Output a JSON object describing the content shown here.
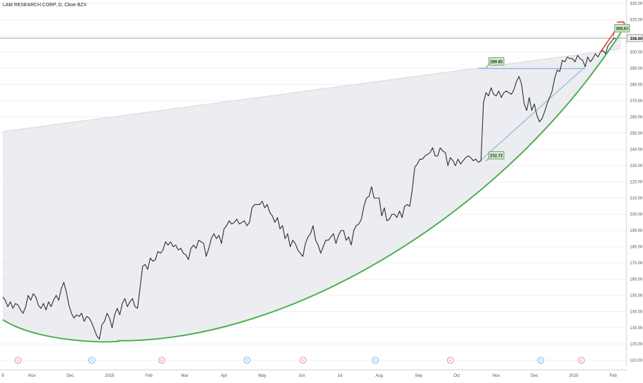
{
  "header": {
    "symbol_title": "LAM RESEARCH CORP, D, Cboe BZX"
  },
  "colors": {
    "price_line": "#2a2a2a",
    "cup_curve": "#4caf50",
    "fill_region": "#e9eaee",
    "blue_lines": "#8ab4e8",
    "red_arrow": "#e53935",
    "label_bg": "#cfe8c7",
    "label_border": "#5f8f5f",
    "grid": "#f0f0f3",
    "earnings_event": "#e57373",
    "dividend_event": "#42a5f5",
    "axis_text": "#555555",
    "last_price_bg": "#f5f5f5"
  },
  "chart_data": {
    "type": "line",
    "title": "LAM RESEARCH CORP, D, Cboe BZX",
    "y_axis": {
      "ticks": [
        "110.00",
        "120.00",
        "130.00",
        "140.00",
        "150.00",
        "160.00",
        "170.00",
        "180.00",
        "190.00",
        "200.00",
        "210.00",
        "220.00",
        "230.00",
        "240.00",
        "250.00",
        "260.00",
        "270.00",
        "280.00",
        "290.00",
        "300.00",
        "310.00",
        "320.00",
        "330.00"
      ],
      "ylim": [
        110,
        330
      ],
      "last_price_label": "308.60",
      "last_price": 308.6
    },
    "x_axis": {
      "tick_labels": [
        "8",
        "Nov",
        "Dec",
        "2019",
        "Feb",
        "Mar",
        "Apr",
        "May",
        "Jun",
        "Jul",
        "Aug",
        "Sep",
        "Oct",
        "Nov",
        "Dec",
        "2020",
        "Feb"
      ],
      "tick_days": [
        0,
        23,
        53,
        84,
        115,
        143,
        174,
        204,
        235,
        265,
        296,
        327,
        357,
        388,
        418,
        449,
        480
      ]
    },
    "price_series": {
      "name": "",
      "points": [
        [
          0,
          149
        ],
        [
          2,
          147
        ],
        [
          4,
          143
        ],
        [
          6,
          146
        ],
        [
          8,
          142
        ],
        [
          10,
          145
        ],
        [
          12,
          144
        ],
        [
          14,
          141
        ],
        [
          16,
          139
        ],
        [
          18,
          143
        ],
        [
          20,
          150
        ],
        [
          22,
          147
        ],
        [
          24,
          151
        ],
        [
          26,
          149
        ],
        [
          28,
          144
        ],
        [
          30,
          142
        ],
        [
          32,
          145
        ],
        [
          34,
          141
        ],
        [
          36,
          146
        ],
        [
          38,
          143
        ],
        [
          40,
          147
        ],
        [
          42,
          150
        ],
        [
          44,
          147
        ],
        [
          46,
          154
        ],
        [
          48,
          158
        ],
        [
          50,
          152
        ],
        [
          52,
          144
        ],
        [
          54,
          139
        ],
        [
          56,
          136
        ],
        [
          58,
          138
        ],
        [
          60,
          137
        ],
        [
          62,
          139
        ],
        [
          64,
          134
        ],
        [
          66,
          137
        ],
        [
          68,
          136
        ],
        [
          70,
          133
        ],
        [
          72,
          129
        ],
        [
          74,
          125
        ],
        [
          76,
          123
        ],
        [
          78,
          132
        ],
        [
          80,
          134
        ],
        [
          82,
          139
        ],
        [
          84,
          136
        ],
        [
          86,
          130
        ],
        [
          88,
          138
        ],
        [
          90,
          142
        ],
        [
          92,
          138
        ],
        [
          94,
          145
        ],
        [
          96,
          148
        ],
        [
          98,
          143
        ],
        [
          100,
          146
        ],
        [
          102,
          148
        ],
        [
          104,
          143
        ],
        [
          106,
          142
        ],
        [
          108,
          155
        ],
        [
          110,
          168
        ],
        [
          112,
          169
        ],
        [
          114,
          166
        ],
        [
          116,
          173
        ],
        [
          118,
          171
        ],
        [
          120,
          172
        ],
        [
          122,
          177
        ],
        [
          124,
          176
        ],
        [
          126,
          178
        ],
        [
          128,
          183
        ],
        [
          130,
          181
        ],
        [
          132,
          183
        ],
        [
          134,
          180
        ],
        [
          136,
          181
        ],
        [
          138,
          178
        ],
        [
          140,
          179
        ],
        [
          142,
          176
        ],
        [
          144,
          175
        ],
        [
          146,
          172
        ],
        [
          148,
          179
        ],
        [
          150,
          181
        ],
        [
          152,
          179
        ],
        [
          154,
          184
        ],
        [
          156,
          183
        ],
        [
          158,
          182
        ],
        [
          160,
          174
        ],
        [
          162,
          179
        ],
        [
          164,
          185
        ],
        [
          166,
          188
        ],
        [
          168,
          185
        ],
        [
          170,
          187
        ],
        [
          172,
          182
        ],
        [
          174,
          191
        ],
        [
          176,
          193
        ],
        [
          178,
          196
        ],
        [
          180,
          194
        ],
        [
          182,
          195
        ],
        [
          184,
          197
        ],
        [
          186,
          194
        ],
        [
          188,
          195
        ],
        [
          190,
          196
        ],
        [
          192,
          193
        ],
        [
          194,
          195
        ],
        [
          196,
          204
        ],
        [
          198,
          206
        ],
        [
          200,
          206
        ],
        [
          202,
          206
        ],
        [
          204,
          208
        ],
        [
          206,
          204
        ],
        [
          208,
          206
        ],
        [
          210,
          201
        ],
        [
          212,
          199
        ],
        [
          214,
          195
        ],
        [
          216,
          198
        ],
        [
          218,
          191
        ],
        [
          220,
          193
        ],
        [
          222,
          185
        ],
        [
          224,
          188
        ],
        [
          226,
          180
        ],
        [
          228,
          184
        ],
        [
          230,
          182
        ],
        [
          232,
          178
        ],
        [
          234,
          176
        ],
        [
          236,
          174
        ],
        [
          238,
          182
        ],
        [
          240,
          186
        ],
        [
          242,
          188
        ],
        [
          244,
          193
        ],
        [
          246,
          184
        ],
        [
          248,
          181
        ],
        [
          250,
          176
        ],
        [
          252,
          180
        ],
        [
          254,
          184
        ],
        [
          256,
          184
        ],
        [
          258,
          186
        ],
        [
          260,
          188
        ],
        [
          262,
          182
        ],
        [
          264,
          187
        ],
        [
          266,
          190
        ],
        [
          268,
          190
        ],
        [
          270,
          184
        ],
        [
          272,
          186
        ],
        [
          274,
          181
        ],
        [
          276,
          190
        ],
        [
          278,
          193
        ],
        [
          280,
          194
        ],
        [
          282,
          197
        ],
        [
          284,
          205
        ],
        [
          286,
          210
        ],
        [
          288,
          211
        ],
        [
          290,
          217
        ],
        [
          292,
          210
        ],
        [
          294,
          210
        ],
        [
          296,
          210
        ],
        [
          298,
          199
        ],
        [
          300,
          204
        ],
        [
          302,
          196
        ],
        [
          304,
          197
        ],
        [
          306,
          200
        ],
        [
          308,
          200
        ],
        [
          310,
          198
        ],
        [
          312,
          202
        ],
        [
          314,
          198
        ],
        [
          316,
          205
        ],
        [
          318,
          206
        ],
        [
          320,
          205
        ],
        [
          322,
          215
        ],
        [
          324,
          229
        ],
        [
          326,
          231
        ],
        [
          328,
          234
        ],
        [
          330,
          234
        ],
        [
          332,
          236
        ],
        [
          334,
          237
        ],
        [
          336,
          238
        ],
        [
          338,
          241
        ],
        [
          340,
          236
        ],
        [
          342,
          236
        ],
        [
          344,
          241
        ],
        [
          346,
          239
        ],
        [
          348,
          238
        ],
        [
          350,
          230
        ],
        [
          352,
          235
        ],
        [
          354,
          233
        ],
        [
          356,
          230
        ],
        [
          358,
          234
        ],
        [
          360,
          231
        ],
        [
          362,
          233
        ],
        [
          364,
          235
        ],
        [
          366,
          236
        ],
        [
          368,
          235
        ],
        [
          370,
          233
        ],
        [
          372,
          234
        ],
        [
          374,
          232
        ],
        [
          376,
          233
        ],
        [
          378,
          269
        ],
        [
          380,
          275
        ],
        [
          382,
          273
        ],
        [
          384,
          278
        ],
        [
          386,
          274
        ],
        [
          388,
          273
        ],
        [
          390,
          276
        ],
        [
          392,
          272
        ],
        [
          394,
          275
        ],
        [
          396,
          276
        ],
        [
          398,
          275
        ],
        [
          400,
          274
        ],
        [
          402,
          277
        ],
        [
          404,
          282
        ],
        [
          406,
          285
        ],
        [
          408,
          280
        ],
        [
          410,
          268
        ],
        [
          412,
          264
        ],
        [
          414,
          272
        ],
        [
          416,
          264
        ],
        [
          418,
          268
        ],
        [
          420,
          261
        ],
        [
          422,
          257
        ],
        [
          424,
          259
        ],
        [
          426,
          263
        ],
        [
          428,
          268
        ],
        [
          430,
          272
        ],
        [
          432,
          276
        ],
        [
          434,
          284
        ],
        [
          436,
          289
        ],
        [
          438,
          288
        ],
        [
          440,
          295
        ],
        [
          442,
          294
        ],
        [
          444,
          297
        ],
        [
          446,
          296
        ],
        [
          448,
          296
        ],
        [
          450,
          294
        ],
        [
          452,
          298
        ],
        [
          454,
          296
        ],
        [
          456,
          295
        ],
        [
          458,
          291
        ],
        [
          460,
          297
        ],
        [
          462,
          294
        ],
        [
          464,
          296
        ],
        [
          466,
          299
        ],
        [
          468,
          297
        ],
        [
          470,
          300
        ],
        [
          472,
          301
        ],
        [
          474,
          299
        ],
        [
          476,
          304
        ],
        [
          478,
          306
        ],
        [
          480,
          308
        ],
        [
          482,
          308.6
        ]
      ]
    },
    "cup_curve": {
      "start": [
        0,
        135
      ],
      "bottom": [
        90,
        122
      ],
      "end": [
        486,
        312
      ]
    },
    "shaded_region": {
      "top_line": {
        "from": [
          0,
          251
        ],
        "to": [
          486,
          302
        ]
      }
    },
    "labels": [
      {
        "text": "289.85",
        "day": 380,
        "value": 289.85
      },
      {
        "text": "232.72",
        "day": 380,
        "value": 232.72
      },
      {
        "text": "308.60",
        "day": 480,
        "value": 308.6
      }
    ],
    "blue_lines": {
      "horizontal": {
        "from_day": 374,
        "to_day": 458,
        "value": 289.85
      },
      "diagonal": {
        "from": [
          374,
          232
        ],
        "to": [
          458,
          291
        ]
      }
    },
    "red_arrow": {
      "from": [
        470,
        300
      ],
      "to": [
        484,
        316
      ]
    },
    "events": [
      {
        "day": 12,
        "letter": "E"
      },
      {
        "day": 70,
        "letter": "D"
      },
      {
        "day": 125,
        "letter": "E"
      },
      {
        "day": 192,
        "letter": "D"
      },
      {
        "day": 236,
        "letter": "E"
      },
      {
        "day": 293,
        "letter": "D"
      },
      {
        "day": 352,
        "letter": "E"
      },
      {
        "day": 423,
        "letter": "D"
      },
      {
        "day": 455,
        "letter": "E"
      },
      {
        "day": 510,
        "letter": "D"
      },
      {
        "day": 560,
        "letter": "E"
      }
    ],
    "grid": true
  }
}
